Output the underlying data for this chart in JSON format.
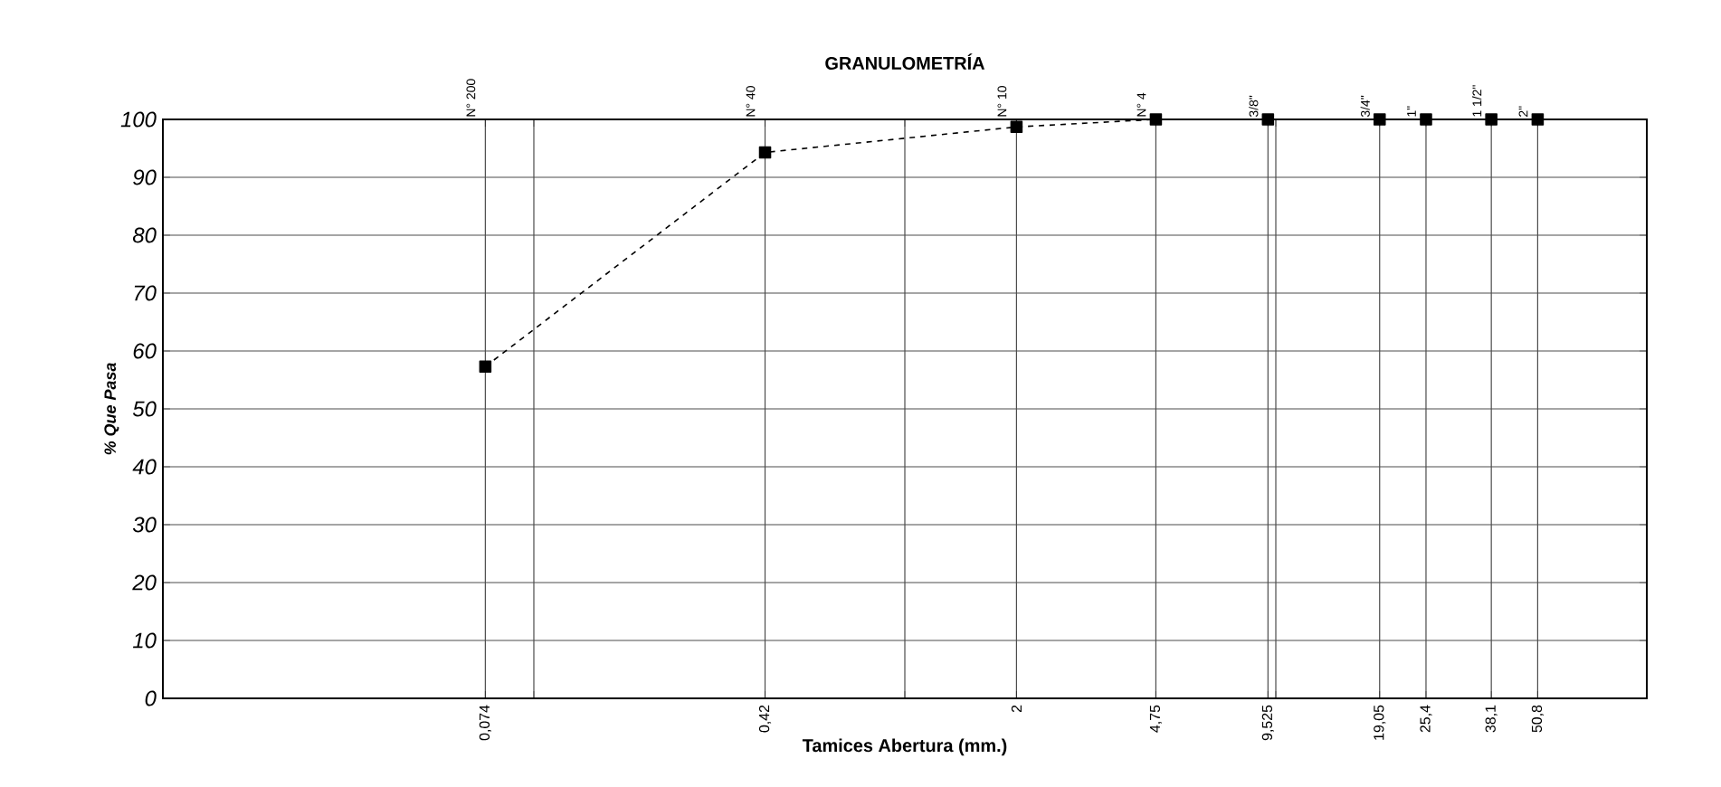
{
  "chart_data": {
    "type": "line",
    "title": "GRANULOMETRÍA",
    "xlabel": "Tamices Abertura (mm.)",
    "ylabel": "% Que Pasa",
    "log": "x",
    "xlim": [
      0.01,
      100
    ],
    "ylim": [
      0,
      100
    ],
    "x": [
      0.074,
      0.42,
      2,
      4.75,
      9.525,
      19.05,
      25.4,
      38.1,
      50.8
    ],
    "series": [
      {
        "color": "#000000",
        "values": [
          57.3,
          94.3,
          98.7,
          100,
          100,
          100,
          100,
          100,
          100
        ]
      }
    ],
    "xticks": [
      {
        "value": 0.074,
        "label": "0,074"
      },
      {
        "value": 0.1,
        "label": null
      },
      {
        "value": 0.42,
        "label": "0,42"
      },
      {
        "value": 1,
        "label": null
      },
      2,
      {
        "value": 4.75,
        "label": "4,75"
      },
      {
        "value": 9.525,
        "label": "9,525"
      },
      {
        "value": 10,
        "label": null
      },
      {
        "value": 19.05,
        "label": "19,05"
      },
      {
        "value": 25.4,
        "label": "25,4"
      },
      {
        "value": 38.1,
        "label": "38,1"
      },
      {
        "value": 50.8,
        "label": "50,8"
      }
    ],
    "annotations": [
      "N° 200",
      "N° 40",
      "N° 10",
      "N° 4",
      "3/8\"",
      "3/4\"",
      "1\"",
      "1 1/2\"",
      "2\""
    ],
    "yticks": [
      0,
      10,
      20,
      30,
      40,
      50,
      60,
      70,
      80,
      90,
      100
    ],
    "grid": true,
    "marker": "square",
    "line_style": "dashed"
  }
}
